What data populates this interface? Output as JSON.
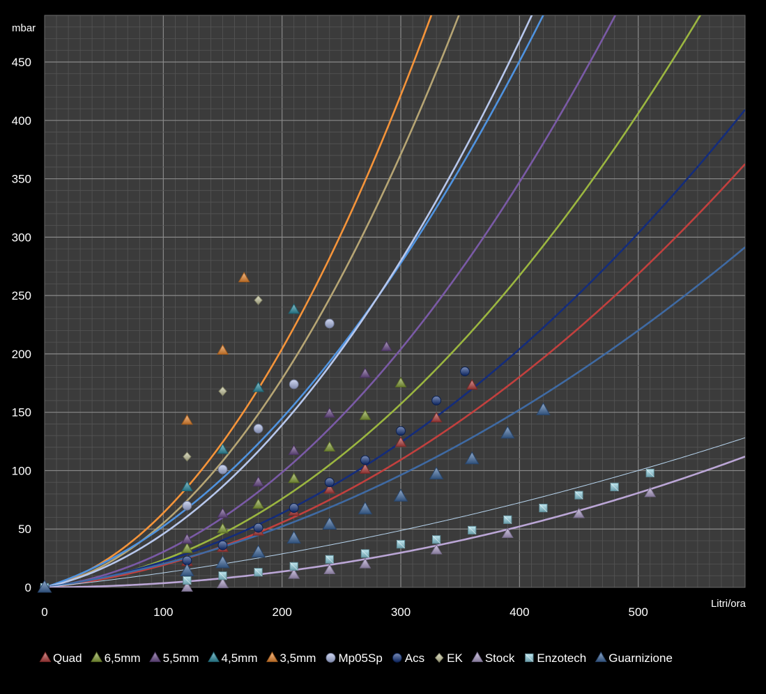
{
  "chart_data": {
    "type": "scatter",
    "title": "",
    "xlabel": "Litri/ora",
    "ylabel": "mbar",
    "xlim": [
      0,
      590
    ],
    "ylim": [
      0,
      490
    ],
    "x_ticks": [
      "0",
      "100",
      "200",
      "300",
      "400",
      "500"
    ],
    "y_ticks": [
      "0",
      "50",
      "100",
      "150",
      "200",
      "250",
      "300",
      "350",
      "400",
      "450"
    ],
    "grid": true,
    "legend": "bottom",
    "background": "#3b3b3b",
    "series": [
      {
        "name": "Quad",
        "color": "#b8403e",
        "marker": "triangle",
        "x": [
          0,
          120,
          150,
          180,
          210,
          240,
          270,
          300,
          330,
          360
        ],
        "y": [
          0,
          22,
          34,
          48,
          65,
          84,
          101,
          124,
          145,
          173
        ]
      },
      {
        "name": "6,5mm",
        "color": "#8aa63a",
        "marker": "triangle",
        "x": [
          0,
          120,
          150,
          180,
          210,
          240,
          270,
          300
        ],
        "y": [
          0,
          33,
          50,
          71,
          93,
          120,
          147,
          175
        ]
      },
      {
        "name": "5,5mm",
        "color": "#6f4f8f",
        "marker": "triangle",
        "x": [
          0,
          120,
          150,
          180,
          210,
          240,
          270,
          288
        ],
        "y": [
          0,
          41,
          63,
          90,
          117,
          149,
          183,
          206
        ]
      },
      {
        "name": "4,5mm",
        "color": "#2f93a8",
        "marker": "triangle",
        "x": [
          0,
          120,
          150,
          180,
          210
        ],
        "y": [
          0,
          86,
          118,
          171,
          238
        ]
      },
      {
        "name": "3,5mm",
        "color": "#f08a30",
        "marker": "triangle",
        "x": [
          0,
          120,
          150,
          168
        ],
        "y": [
          0,
          143,
          203,
          265
        ]
      },
      {
        "name": "Mp05Sp",
        "color": "#aab8e6",
        "marker": "circle",
        "x": [
          0,
          120,
          150,
          180,
          210,
          240
        ],
        "y": [
          0,
          70,
          101,
          136,
          174,
          226
        ]
      },
      {
        "name": "Acs",
        "color": "#0f2f7a",
        "marker": "circle",
        "x": [
          0,
          120,
          150,
          180,
          210,
          240,
          270,
          300,
          330,
          354
        ],
        "y": [
          0,
          23,
          36,
          51,
          68,
          90,
          109,
          134,
          160,
          185
        ]
      },
      {
        "name": "EK",
        "color": "#c4c49a",
        "marker": "diamond",
        "x": [
          0,
          120,
          150,
          180
        ],
        "y": [
          0,
          112,
          168,
          246
        ]
      },
      {
        "name": "Stock",
        "color": "#b3a2cf",
        "marker": "triangle",
        "x": [
          0,
          120,
          150,
          210,
          240,
          270,
          330,
          390,
          450,
          510
        ],
        "y": [
          0,
          0,
          3,
          11,
          15,
          20,
          32,
          46,
          63,
          81
        ]
      },
      {
        "name": "Enzotech",
        "color": "#8fd3e4",
        "marker": "square",
        "x": [
          0,
          120,
          150,
          180,
          210,
          240,
          270,
          300,
          330,
          360,
          390,
          420,
          450,
          480,
          510
        ],
        "y": [
          0,
          6,
          10,
          13,
          18,
          24,
          29,
          37,
          41,
          49,
          58,
          68,
          79,
          86,
          98
        ]
      },
      {
        "name": "Guarnizione",
        "color": "#3f6aa3",
        "marker": "triangle",
        "x": [
          0,
          120,
          150,
          180,
          210,
          240,
          270,
          300,
          330,
          360,
          390,
          420
        ],
        "y": [
          0,
          14,
          21,
          30,
          42,
          54,
          67,
          78,
          97,
          110,
          132,
          152
        ]
      }
    ],
    "trendlines": [
      {
        "color": "#f5943a",
        "coef": [
          0.00384,
          0.2537,
          0
        ]
      },
      {
        "color": "#b6a574",
        "coef": [
          0.00343,
          0.2075,
          0
        ]
      },
      {
        "color": "#4f93e0",
        "coef": [
          0.00201,
          0.3227,
          0
        ]
      },
      {
        "color": "#b7c7ec",
        "coef": [
          0.00237,
          0.2217,
          0
        ]
      },
      {
        "color": "#7a5aa6",
        "coef": [
          0.001878,
          0.1167,
          0
        ]
      },
      {
        "color": "#9bb640",
        "coef": [
          0.001442,
          0.0911,
          0
        ]
      },
      {
        "color": "#142c7a",
        "coef": [
          0.0009624,
          0.1256,
          0
        ]
      },
      {
        "color": "#c2403e",
        "coef": [
          0.0008633,
          0.1053,
          0
        ]
      },
      {
        "color": "#3f6aa3",
        "coef": [
          0.0005969,
          0.1417,
          0
        ]
      },
      {
        "color": "#b7d4ee",
        "coef": [
          0.0001891,
          0.1057,
          0
        ],
        "thin": true
      },
      {
        "color": "#bba6d6",
        "coef": [
          0.0003135,
          0.005,
          0
        ]
      }
    ]
  }
}
